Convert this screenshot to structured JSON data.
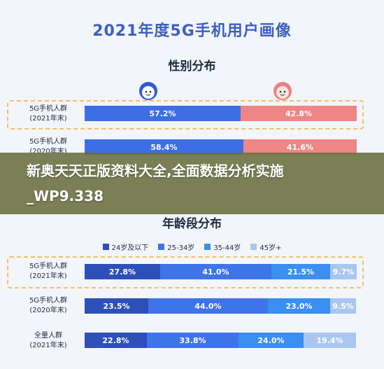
{
  "page": {
    "title": "2021年度5G手机用户画像",
    "overlay_title": "新奥天天正版资料大全,全面数据分析实施_WP9.338"
  },
  "chart_data": [
    {
      "type": "bar",
      "stacked": true,
      "orientation": "horizontal",
      "title": "性别分布",
      "categories": [
        "5G手机人群\n(2021年末)",
        "5G手机人群\n(2020年末)"
      ],
      "series": [
        {
          "values": [
            57.2,
            58.4
          ],
          "color": "#3d6ee6"
        },
        {
          "values": [
            42.8,
            41.6
          ],
          "color": "#f08585"
        }
      ],
      "xlim": [
        0,
        100
      ],
      "unit": "%"
    },
    {
      "type": "bar",
      "stacked": true,
      "orientation": "horizontal",
      "title": "年龄段分布",
      "categories": [
        "5G手机人群\n(2021年末)",
        "5G手机人群\n(2020年末)",
        "全量人群\n(2021年末)"
      ],
      "series": [
        {
          "name": "24岁及以下",
          "values": [
            27.8,
            23.5,
            22.8
          ],
          "color": "#2d4fb8"
        },
        {
          "name": "25-34岁",
          "values": [
            41.0,
            44.0,
            33.8
          ],
          "color": "#3f74e8"
        },
        {
          "name": "35-44岁",
          "values": [
            21.5,
            23.0,
            24.0
          ],
          "color": "#3a8ff0"
        },
        {
          "name": "45岁+",
          "values": [
            9.7,
            9.5,
            19.4
          ],
          "color": "#a9c6f0"
        }
      ],
      "legend": "top",
      "xlim": [
        0,
        100
      ],
      "unit": "%"
    }
  ]
}
